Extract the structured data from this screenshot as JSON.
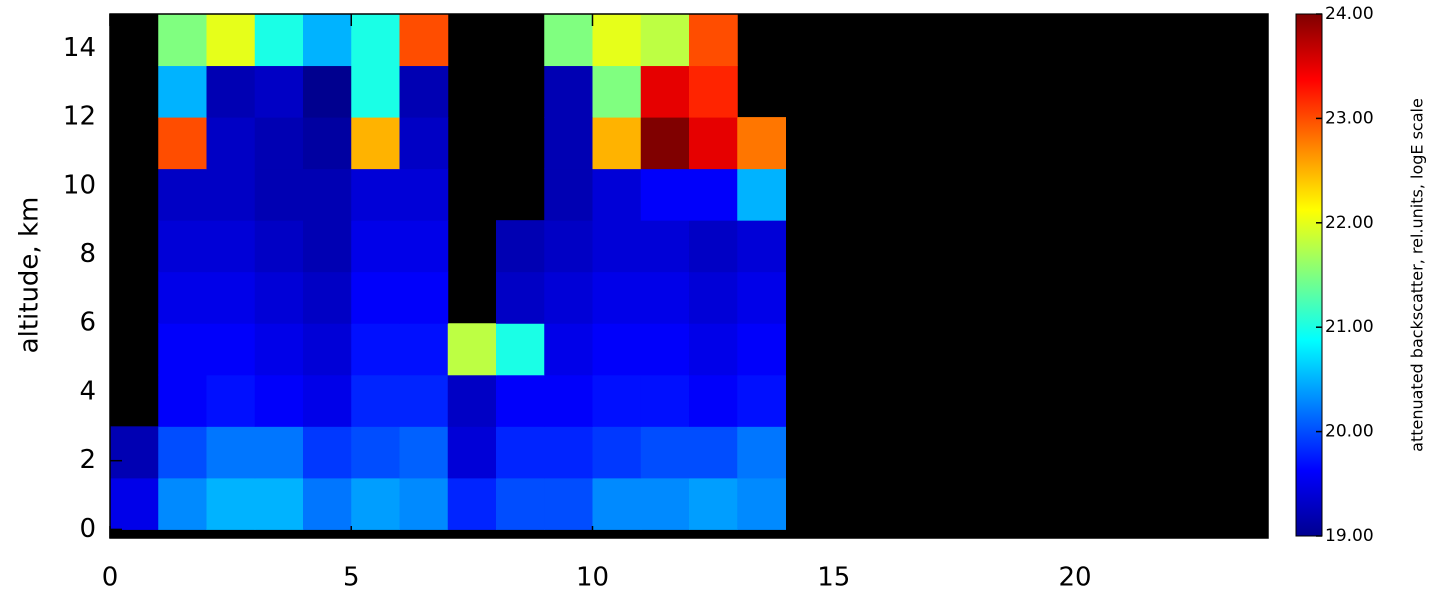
{
  "chart_data": {
    "type": "heatmap",
    "ylabel": "altitude, km",
    "colorbar_label": "attenuated backscatter, rel.units, logE scale",
    "xlim": [
      0,
      24
    ],
    "xticks": [
      0,
      5,
      10,
      15,
      20
    ],
    "ylim": [
      -0.25,
      15
    ],
    "yticks": [
      0,
      2,
      4,
      6,
      8,
      10,
      12,
      14
    ],
    "x_bins": [
      0,
      1,
      2,
      3,
      4,
      5,
      6,
      7,
      8,
      9,
      10,
      11,
      12,
      13,
      14,
      15,
      16,
      17,
      18,
      19,
      20,
      21,
      22,
      23,
      24
    ],
    "y_bins": [
      0,
      1.5,
      3,
      4.5,
      6,
      7.5,
      9,
      10.5,
      12,
      13.5,
      15
    ],
    "z": [
      [
        19.5,
        20.3,
        20.5,
        20.5,
        20.2,
        20.4,
        20.3,
        19.8,
        20.0,
        20.0,
        20.3,
        20.3,
        20.4,
        20.3,
        null,
        null,
        null,
        null,
        null,
        null,
        null,
        null,
        null,
        null
      ],
      [
        19.2,
        20.0,
        20.2,
        20.2,
        19.9,
        20.0,
        20.1,
        19.4,
        19.8,
        19.8,
        19.9,
        20.0,
        20.0,
        20.2,
        null,
        null,
        null,
        null,
        null,
        null,
        null,
        null,
        null,
        null
      ],
      [
        null,
        19.6,
        19.7,
        19.6,
        19.5,
        19.8,
        19.8,
        19.3,
        19.6,
        19.6,
        19.7,
        19.7,
        19.6,
        19.7,
        null,
        null,
        null,
        null,
        null,
        null,
        null,
        null,
        null,
        null
      ],
      [
        null,
        19.6,
        19.6,
        19.5,
        19.4,
        19.7,
        19.7,
        21.8,
        21.0,
        19.5,
        19.6,
        19.6,
        19.5,
        19.6,
        null,
        null,
        null,
        null,
        null,
        null,
        null,
        null,
        null,
        null
      ],
      [
        null,
        19.5,
        19.5,
        19.4,
        19.3,
        19.6,
        19.6,
        null,
        19.3,
        19.4,
        19.5,
        19.5,
        19.4,
        19.5,
        null,
        null,
        null,
        null,
        null,
        null,
        null,
        null,
        null,
        null
      ],
      [
        null,
        19.4,
        19.4,
        19.3,
        19.2,
        19.5,
        19.5,
        null,
        19.2,
        19.3,
        19.4,
        19.4,
        19.3,
        19.4,
        null,
        null,
        null,
        null,
        null,
        null,
        null,
        null,
        null,
        null
      ],
      [
        null,
        19.3,
        19.3,
        19.2,
        19.2,
        19.4,
        19.4,
        null,
        null,
        19.2,
        19.4,
        19.6,
        19.6,
        20.5,
        null,
        null,
        null,
        null,
        null,
        null,
        null,
        null,
        null,
        null
      ],
      [
        null,
        23.0,
        19.3,
        19.2,
        19.1,
        22.5,
        19.3,
        null,
        null,
        19.2,
        22.5,
        24.0,
        23.5,
        22.8,
        null,
        null,
        null,
        null,
        null,
        null,
        null,
        null,
        null,
        null
      ],
      [
        null,
        20.5,
        19.2,
        19.3,
        19.0,
        21.0,
        19.2,
        null,
        null,
        19.2,
        21.5,
        23.5,
        23.2,
        null,
        null,
        null,
        null,
        null,
        null,
        null,
        null,
        null,
        null,
        null
      ],
      [
        null,
        21.5,
        22.0,
        21.0,
        20.5,
        21.0,
        23.0,
        null,
        null,
        21.5,
        22.0,
        21.8,
        23.0,
        null,
        null,
        null,
        null,
        null,
        null,
        null,
        null,
        null,
        null,
        null
      ]
    ],
    "background": "#000000",
    "colormap": [
      "#00008f",
      "#0000ff",
      "#0080ff",
      "#00ffff",
      "#80ff80",
      "#ffff00",
      "#ff8000",
      "#ff0000",
      "#800000"
    ],
    "clim": [
      19,
      24
    ],
    "cticks": [
      {
        "value": 19,
        "label": "19.00"
      },
      {
        "value": 20,
        "label": "20.00"
      },
      {
        "value": 21,
        "label": "21.00"
      },
      {
        "value": 22,
        "label": "22.00"
      },
      {
        "value": 23,
        "label": "23.00"
      },
      {
        "value": 24,
        "label": "24.00"
      }
    ]
  }
}
